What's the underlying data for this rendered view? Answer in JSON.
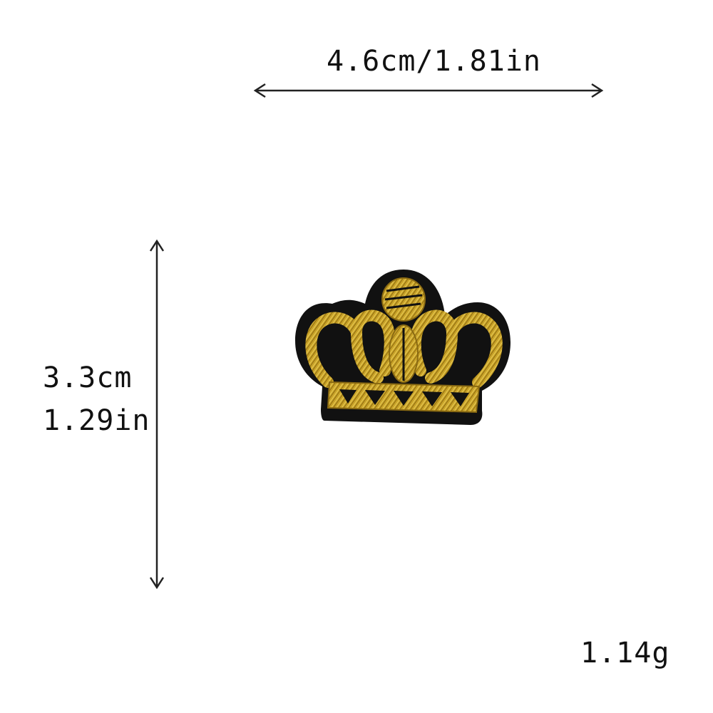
{
  "dimensions": {
    "width_label": "4.6cm/1.81in",
    "height_cm_label": "3.3cm",
    "height_in_label": "1.29in"
  },
  "weight_label": "1.14g",
  "product": {
    "icon": "crown-patch-icon",
    "colors": {
      "gold": "#C9A227",
      "gold_dark": "#8A6A12",
      "backing": "#111111"
    }
  }
}
